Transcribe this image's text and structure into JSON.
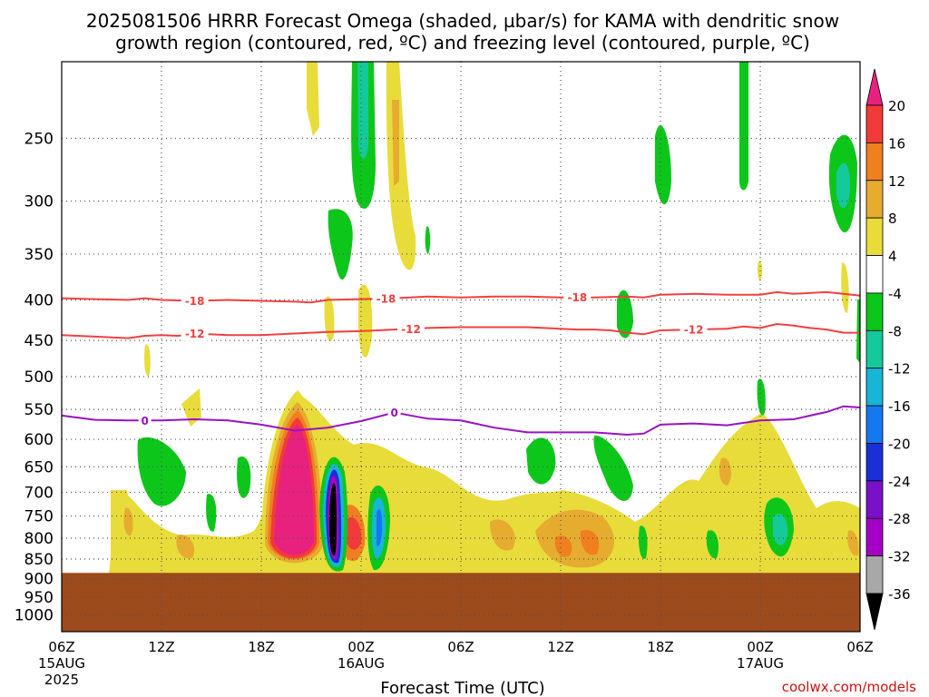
{
  "chart_data": {
    "type": "heatmap",
    "title_line1": "2025081506 HRRR Forecast Omega (shaded, µbar/s) for KAMA with dendritic snow",
    "title_line2": "growth region (contoured, red, ºC) and freezing level (contoured, purple, ºC)",
    "xlabel": "Forecast Time (UTC)",
    "ylabel": "",
    "credit": "coolwx.com/models",
    "y_axis": {
      "scale": "pressure (hPa), inverted",
      "range": [
        1050,
        200
      ],
      "ticks": [
        250,
        300,
        350,
        400,
        450,
        500,
        550,
        600,
        650,
        700,
        750,
        800,
        850,
        900,
        950,
        1000
      ]
    },
    "x_axis": {
      "range_hours": [
        0,
        48
      ],
      "ticks": [
        {
          "hour": 0,
          "label": "06Z",
          "date": "15AUG",
          "year": "2025"
        },
        {
          "hour": 6,
          "label": "12Z",
          "date": "",
          "year": ""
        },
        {
          "hour": 12,
          "label": "18Z",
          "date": "",
          "year": ""
        },
        {
          "hour": 18,
          "label": "00Z",
          "date": "16AUG",
          "year": ""
        },
        {
          "hour": 24,
          "label": "06Z",
          "date": "",
          "year": ""
        },
        {
          "hour": 30,
          "label": "12Z",
          "date": "",
          "year": ""
        },
        {
          "hour": 36,
          "label": "18Z",
          "date": "",
          "year": ""
        },
        {
          "hour": 42,
          "label": "00Z",
          "date": "17AUG",
          "year": ""
        },
        {
          "hour": 48,
          "label": "06Z",
          "date": "",
          "year": ""
        }
      ]
    },
    "grid": true,
    "colorbar": {
      "ticks": [
        "20",
        "16",
        "12",
        "8",
        "4",
        "-4",
        "-8",
        "-12",
        "-16",
        "-20",
        "-24",
        "-28",
        "-32",
        "-36"
      ],
      "bands": [
        {
          "color": "#e8217f"
        },
        {
          "color": "#f23a3a"
        },
        {
          "color": "#f07f1f"
        },
        {
          "color": "#e6ac30"
        },
        {
          "color": "#e8dc3a"
        },
        {
          "color": "#ffffff"
        },
        {
          "color": "#0dc61a"
        },
        {
          "color": "#14c99a"
        },
        {
          "color": "#17b5d6"
        },
        {
          "color": "#1478ee"
        },
        {
          "color": "#1a2fd6"
        },
        {
          "color": "#7a10c8"
        },
        {
          "color": "#a400c6"
        },
        {
          "color": "#a8a8a8"
        },
        {
          "color": "#000000"
        }
      ]
    },
    "surface_below_hpa": 885,
    "surface_color": "#9d4a1d",
    "contours": {
      "minus18": {
        "label": "-18",
        "color": "#f04040",
        "points": [
          [
            0,
            398
          ],
          [
            2,
            399
          ],
          [
            4,
            400
          ],
          [
            5,
            398
          ],
          [
            6,
            400
          ],
          [
            8,
            401
          ],
          [
            10,
            400
          ],
          [
            12,
            401
          ],
          [
            14,
            402
          ],
          [
            15,
            403
          ],
          [
            16,
            400
          ],
          [
            18,
            399
          ],
          [
            20,
            398
          ],
          [
            22,
            396
          ],
          [
            24,
            397
          ],
          [
            26,
            396
          ],
          [
            28,
            396
          ],
          [
            30,
            397
          ],
          [
            32,
            397
          ],
          [
            34,
            396
          ],
          [
            35,
            397
          ],
          [
            36,
            394
          ],
          [
            38,
            393
          ],
          [
            40,
            394
          ],
          [
            42,
            394
          ],
          [
            43,
            391
          ],
          [
            44,
            393
          ],
          [
            46,
            391
          ],
          [
            47,
            393
          ],
          [
            48,
            395
          ]
        ],
        "label_hours": [
          8,
          19.5,
          31
        ]
      },
      "minus12": {
        "label": "-12",
        "color": "#f04040",
        "points": [
          [
            0,
            443
          ],
          [
            2,
            445
          ],
          [
            4,
            447
          ],
          [
            5,
            444
          ],
          [
            6,
            443
          ],
          [
            7,
            444
          ],
          [
            8,
            441
          ],
          [
            10,
            443
          ],
          [
            12,
            443
          ],
          [
            14,
            441
          ],
          [
            16,
            439
          ],
          [
            18,
            438
          ],
          [
            20,
            436
          ],
          [
            22,
            434
          ],
          [
            24,
            433
          ],
          [
            26,
            433
          ],
          [
            28,
            433
          ],
          [
            30,
            435
          ],
          [
            31,
            436
          ],
          [
            32,
            436
          ],
          [
            33,
            437
          ],
          [
            34,
            440
          ],
          [
            35,
            442
          ],
          [
            36,
            437
          ],
          [
            38,
            436
          ],
          [
            40,
            435
          ],
          [
            41,
            432
          ],
          [
            42,
            434
          ],
          [
            43,
            429
          ],
          [
            44,
            431
          ],
          [
            45,
            434
          ],
          [
            46,
            436
          ],
          [
            47,
            440
          ],
          [
            48,
            440
          ]
        ],
        "label_hours": [
          8,
          21,
          38
        ]
      },
      "freezing": {
        "label": "0",
        "color": "#9a10c8",
        "points": [
          [
            0,
            560
          ],
          [
            2,
            567
          ],
          [
            4,
            568
          ],
          [
            6,
            568
          ],
          [
            8,
            566
          ],
          [
            10,
            568
          ],
          [
            12,
            575
          ],
          [
            14,
            585
          ],
          [
            16,
            580
          ],
          [
            18,
            569
          ],
          [
            20,
            555
          ],
          [
            22,
            565
          ],
          [
            24,
            568
          ],
          [
            26,
            580
          ],
          [
            28,
            588
          ],
          [
            30,
            588
          ],
          [
            32,
            588
          ],
          [
            34,
            592
          ],
          [
            35,
            590
          ],
          [
            36,
            575
          ],
          [
            38,
            573
          ],
          [
            40,
            576
          ],
          [
            42,
            568
          ],
          [
            44,
            566
          ],
          [
            46,
            554
          ],
          [
            47,
            545
          ],
          [
            48,
            547
          ]
        ],
        "label_hours": [
          5,
          20
        ]
      }
    }
  }
}
